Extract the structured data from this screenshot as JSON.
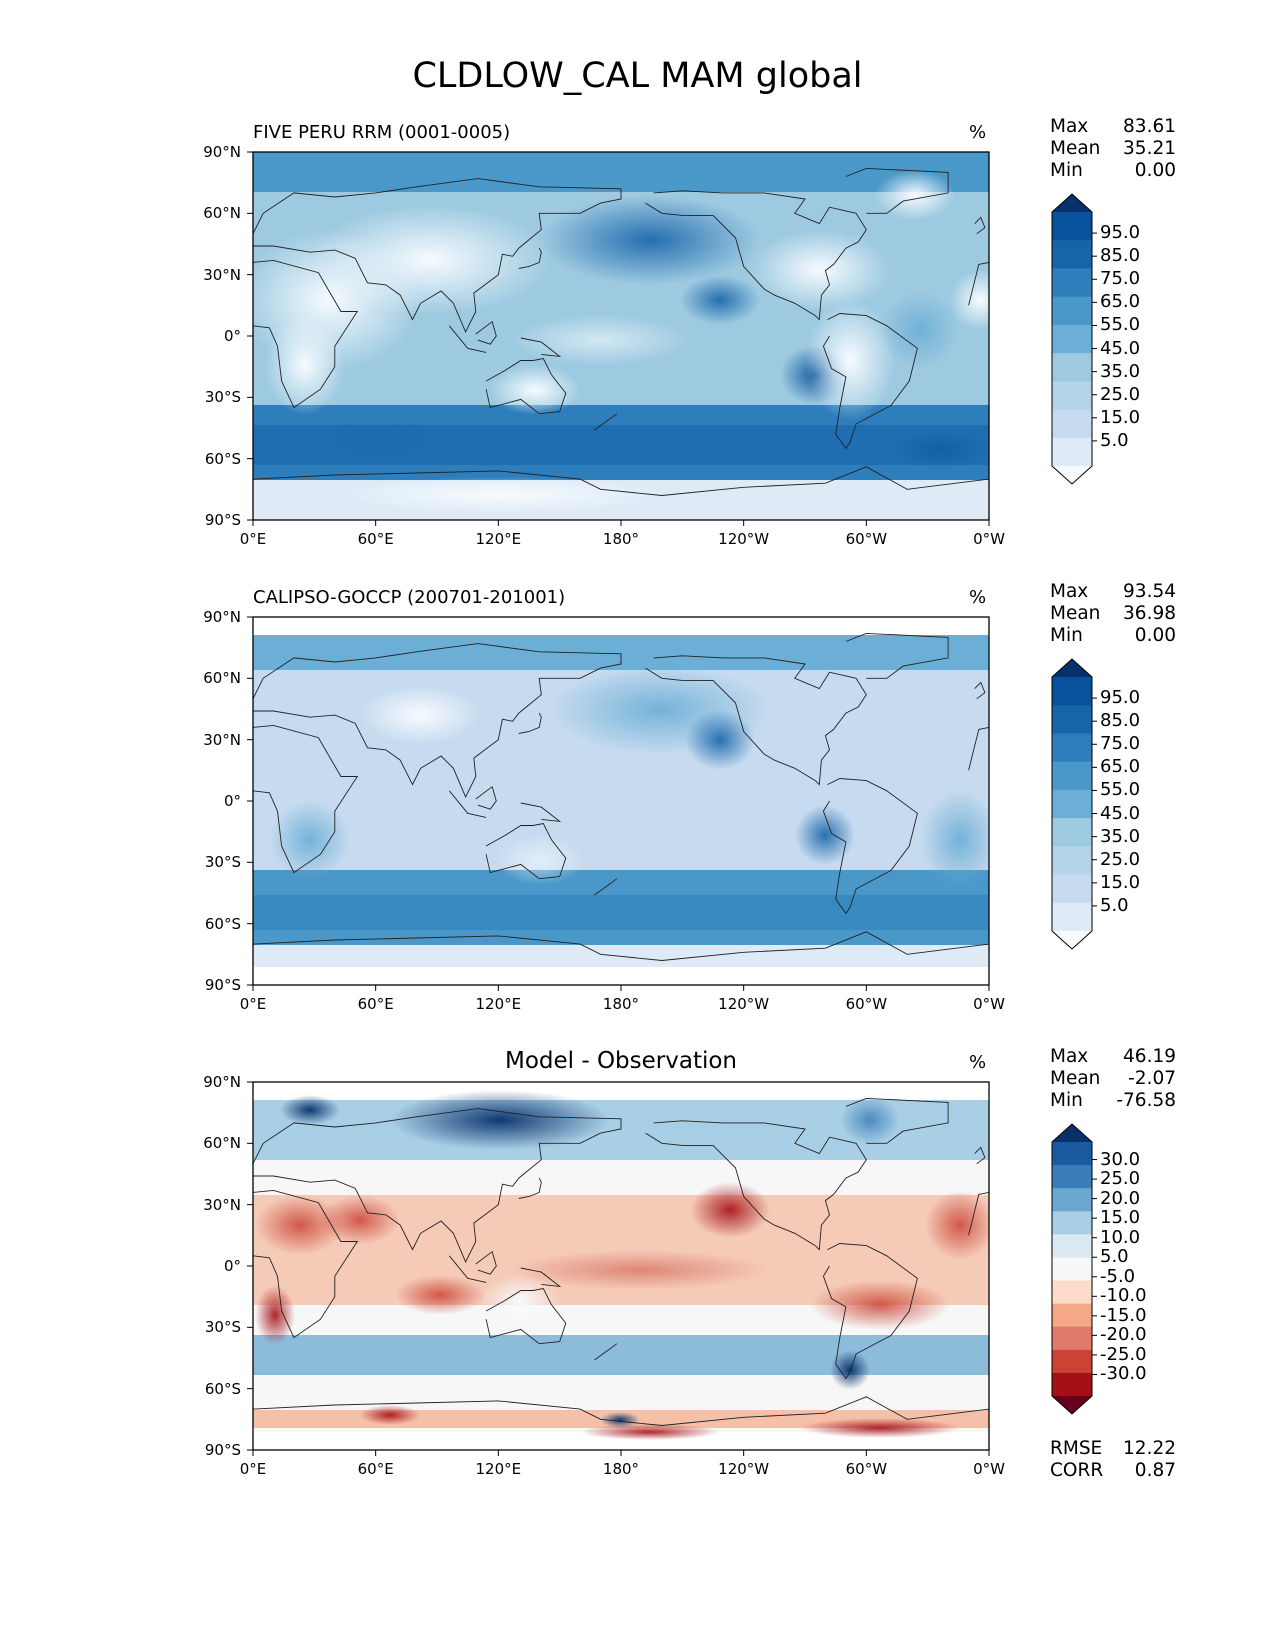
{
  "title": "CLDLOW_CAL MAM global",
  "x_ticks": [
    "0°E",
    "60°E",
    "120°E",
    "180°",
    "120°W",
    "60°W",
    "0°W"
  ],
  "y_ticks": [
    "90°N",
    "60°N",
    "30°N",
    "0°",
    "30°S",
    "60°S",
    "90°S"
  ],
  "colors": {
    "blues": [
      "#f7fbff",
      "#deebf7",
      "#c6dbef",
      "#b5d4e9",
      "#9ecae1",
      "#6baed6",
      "#4a98c9",
      "#2f7ebc",
      "#1764ab",
      "#08519c",
      "#08306b"
    ],
    "diverging": [
      "#67001f",
      "#a50f15",
      "#cb4335",
      "#e07b6b",
      "#f4a885",
      "#fcdcc9",
      "#f7f7f7",
      "#dbe9f4",
      "#a8cfe5",
      "#6aa8d2",
      "#3b7db9",
      "#1b5aa0",
      "#08306b"
    ]
  },
  "panels": [
    {
      "subtitle": "FIVE PERU RRM (0001-0005)",
      "center_title": "",
      "unit": "%",
      "stats": [
        {
          "label": "Max",
          "value": "83.61"
        },
        {
          "label": "Mean",
          "value": "35.21"
        },
        {
          "label": "Min",
          "value": "0.00"
        }
      ],
      "colorbar_labels": [
        "95.0",
        "85.0",
        "75.0",
        "65.0",
        "55.0",
        "45.0",
        "35.0",
        "25.0",
        "15.0",
        "5.0"
      ],
      "extra_stats": []
    },
    {
      "subtitle": "CALIPSO-GOCCP (200701-201001)",
      "center_title": "",
      "unit": "%",
      "stats": [
        {
          "label": "Max",
          "value": "93.54"
        },
        {
          "label": "Mean",
          "value": "36.98"
        },
        {
          "label": "Min",
          "value": "0.00"
        }
      ],
      "colorbar_labels": [
        "95.0",
        "85.0",
        "75.0",
        "65.0",
        "55.0",
        "45.0",
        "35.0",
        "25.0",
        "15.0",
        "5.0"
      ],
      "extra_stats": []
    },
    {
      "subtitle": "",
      "center_title": "Model - Observation",
      "unit": "%",
      "stats": [
        {
          "label": "Max",
          "value": "46.19"
        },
        {
          "label": "Mean",
          "value": "-2.07"
        },
        {
          "label": "Min",
          "value": "-76.58"
        }
      ],
      "colorbar_labels": [
        "30.0",
        "25.0",
        "20.0",
        "15.0",
        "10.0",
        "5.0",
        "-5.0",
        "-10.0",
        "-15.0",
        "-20.0",
        "-25.0",
        "-30.0"
      ],
      "extra_stats": [
        {
          "label": "RMSE",
          "value": "12.22"
        },
        {
          "label": "CORR",
          "value": "0.87"
        }
      ]
    }
  ]
}
